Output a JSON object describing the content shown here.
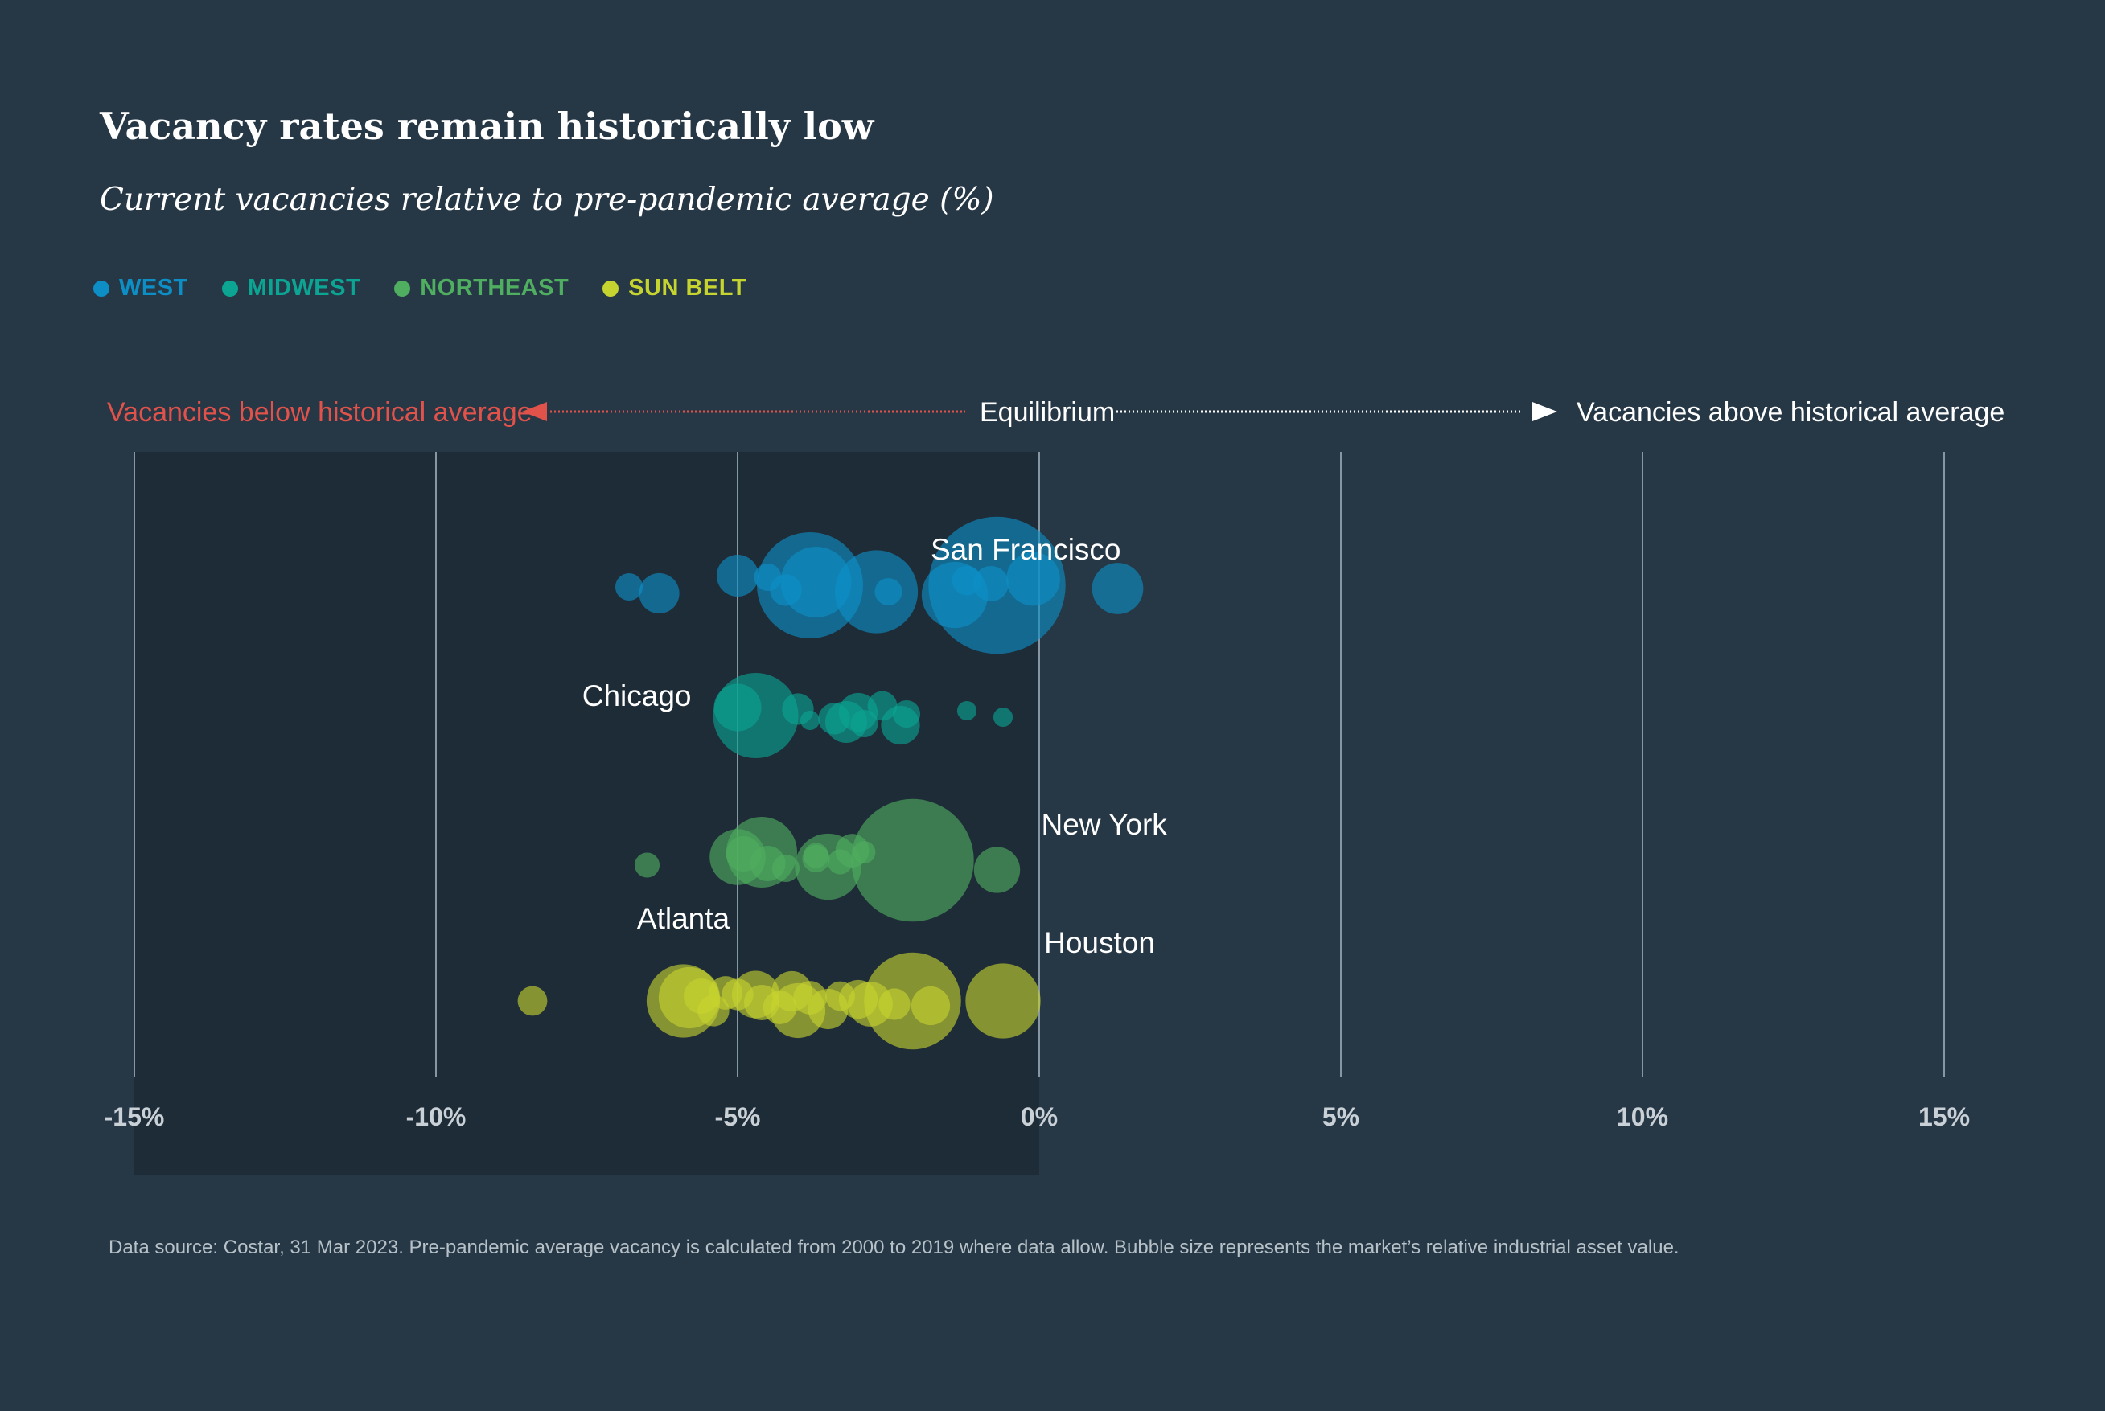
{
  "title": "Vacancy rates remain historically low",
  "subtitle": "Current vacancies relative to pre-pandemic average (%)",
  "footnote": "Data source: Costar, 31 Mar 2023. Pre-pandemic average vacancy is calculated from 2000 to 2019 where data allow. Bubble size represents the market’s relative industrial asset value.",
  "colors": {
    "background": "#263746",
    "below_region": "#1e2c38",
    "gridline": "#8796a3",
    "below_accent": "#e0524a",
    "tick_label": "#c9d0d6"
  },
  "legend": [
    {
      "label": "WEST",
      "color": "#0d8fc6"
    },
    {
      "label": "MIDWEST",
      "color": "#0ca593"
    },
    {
      "label": "NORTHEAST",
      "color": "#4fae60"
    },
    {
      "label": "SUN BELT",
      "color": "#c6d42f"
    }
  ],
  "annotations": {
    "below": "Vacancies below historical average",
    "equilibrium": "Equilibrium",
    "above": "Vacancies above historical average"
  },
  "chart_data": {
    "type": "scatter",
    "title": "Vacancy rates remain historically low",
    "subtitle": "Current vacancies relative to pre-pandemic average (%)",
    "xlabel": "",
    "ylabel": "",
    "xlim": [
      -15,
      15
    ],
    "xticks": [
      -15,
      -10,
      -5,
      0,
      5,
      10,
      15
    ],
    "xtick_labels": [
      "-15%",
      "-10%",
      "-5%",
      "0%",
      "5%",
      "10%",
      "15%"
    ],
    "grid": true,
    "shaded_range": [
      -15,
      0
    ],
    "series": [
      {
        "name": "WEST",
        "color": "#0d8fc6",
        "points": [
          {
            "x": -6.8,
            "size": 0.6
          },
          {
            "x": -6.3,
            "size": 1.3
          },
          {
            "x": -5.0,
            "size": 1.4
          },
          {
            "x": -4.5,
            "size": 0.6
          },
          {
            "x": -4.2,
            "size": 0.8
          },
          {
            "x": -3.8,
            "size": 9.0,
            "label": "San Francisco"
          },
          {
            "x": -3.7,
            "size": 4.0
          },
          {
            "x": -2.7,
            "size": 5.5
          },
          {
            "x": -2.5,
            "size": 0.6
          },
          {
            "x": -1.4,
            "size": 3.5
          },
          {
            "x": -1.2,
            "size": 0.7
          },
          {
            "x": -0.8,
            "size": 1.0
          },
          {
            "x": -0.7,
            "size": 15.0
          },
          {
            "x": -0.1,
            "size": 2.3
          },
          {
            "x": 1.3,
            "size": 2.1
          }
        ]
      },
      {
        "name": "MIDWEST",
        "color": "#0ca593",
        "points": [
          {
            "x": -4.7,
            "size": 5.8,
            "label": "Chicago"
          },
          {
            "x": -5.0,
            "size": 1.8
          },
          {
            "x": -4.0,
            "size": 0.8
          },
          {
            "x": -3.8,
            "size": 0.3
          },
          {
            "x": -3.4,
            "size": 0.8
          },
          {
            "x": -3.2,
            "size": 1.4
          },
          {
            "x": -3.0,
            "size": 1.2
          },
          {
            "x": -2.9,
            "size": 0.6
          },
          {
            "x": -2.6,
            "size": 0.7
          },
          {
            "x": -2.3,
            "size": 1.2
          },
          {
            "x": -2.2,
            "size": 0.6
          },
          {
            "x": -1.2,
            "size": 0.3
          },
          {
            "x": -0.6,
            "size": 0.3
          }
        ]
      },
      {
        "name": "NORTHEAST",
        "color": "#4fae60",
        "points": [
          {
            "x": -6.5,
            "size": 0.5
          },
          {
            "x": -5.0,
            "size": 2.5
          },
          {
            "x": -4.6,
            "size": 4.0
          },
          {
            "x": -4.9,
            "size": 1.0
          },
          {
            "x": -4.5,
            "size": 1.0
          },
          {
            "x": -4.2,
            "size": 0.6
          },
          {
            "x": -3.7,
            "size": 0.6
          },
          {
            "x": -3.5,
            "size": 3.5
          },
          {
            "x": -3.7,
            "size": 0.5
          },
          {
            "x": -3.3,
            "size": 0.5
          },
          {
            "x": -3.1,
            "size": 0.9
          },
          {
            "x": -2.9,
            "size": 0.4
          },
          {
            "x": -2.1,
            "size": 12.0,
            "label": "New York"
          },
          {
            "x": -0.7,
            "size": 1.7
          }
        ]
      },
      {
        "name": "SUN BELT",
        "color": "#c6d42f",
        "points": [
          {
            "x": -8.4,
            "size": 0.7
          },
          {
            "x": -5.9,
            "size": 4.3,
            "label": "Atlanta"
          },
          {
            "x": -5.8,
            "size": 3.0
          },
          {
            "x": -5.6,
            "size": 1.0
          },
          {
            "x": -5.4,
            "size": 0.8
          },
          {
            "x": -5.2,
            "size": 0.9
          },
          {
            "x": -5.0,
            "size": 0.8
          },
          {
            "x": -4.7,
            "size": 1.8
          },
          {
            "x": -4.6,
            "size": 1.0
          },
          {
            "x": -4.3,
            "size": 0.9
          },
          {
            "x": -4.1,
            "size": 1.3
          },
          {
            "x": -4.0,
            "size": 2.4
          },
          {
            "x": -3.8,
            "size": 0.9
          },
          {
            "x": -3.5,
            "size": 1.3
          },
          {
            "x": -3.3,
            "size": 0.7
          },
          {
            "x": -3.0,
            "size": 1.2
          },
          {
            "x": -2.8,
            "size": 1.6
          },
          {
            "x": -2.4,
            "size": 0.8
          },
          {
            "x": -2.1,
            "size": 7.5
          },
          {
            "x": -1.8,
            "size": 1.2
          },
          {
            "x": -0.6,
            "size": 4.5,
            "label": "Houston"
          }
        ]
      }
    ]
  }
}
